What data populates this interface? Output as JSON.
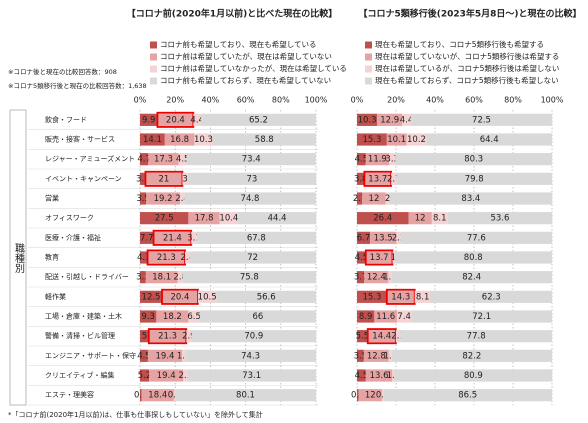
{
  "chart_data": [
    {
      "type": "stacked-bar-horizontal",
      "title": "【コロナ前(2020年1月以前)と比べた現在の比較】",
      "notes": [
        "※コロナ後と現在の比較回答数：908",
        "※コロナ5類移行後と現在の比較回答数：1,638"
      ],
      "y_label": "職種別",
      "footnote": "*「コロナ前(2020年1月以前)は、仕事も仕事探しもしていない」を除外して集計",
      "categories": [
        "飲食・フード",
        "販売・接客・サービス",
        "レジャー・アミューズメント",
        "イベント・キャンペーン",
        "営業",
        "オフィスワーク",
        "医療・介護・福祉",
        "教育",
        "配送・引越し・ドライバー",
        "軽作業",
        "工場・倉庫・建築・土木",
        "警備・清掃・ビル管理",
        "エンジニア・サポート・保守",
        "クリエイティブ・編集",
        "エステ・理美容"
      ],
      "xlim": [
        0,
        100
      ],
      "xticks": [
        {
          "value": 0,
          "label": "0%"
        },
        {
          "value": 20,
          "label": "20%"
        },
        {
          "value": 40,
          "label": "40%"
        },
        {
          "value": 60,
          "label": "60%"
        },
        {
          "value": 80,
          "label": "80%"
        },
        {
          "value": 100,
          "label": "100%"
        }
      ],
      "grid": true,
      "series": [
        {
          "name": "コロナ前も希望しており、現在も希望している",
          "color": "#c0504d",
          "values": [
            9.9,
            14.1,
            4.7,
            3.1,
            3.5,
            27.5,
            7.7,
            4.3,
            3.3,
            12.5,
            9.3,
            5.0,
            4.5,
            5.2,
            0.9
          ]
        },
        {
          "name": "コロナ前は希望していたが、現在は希望していない",
          "color": "#e6a3a3",
          "values": [
            20.4,
            16.8,
            17.3,
            21.0,
            19.2,
            17.8,
            21.4,
            21.3,
            18.1,
            20.4,
            18.2,
            21.3,
            19.4,
            19.4,
            18.4
          ],
          "highlight": [
            0,
            3,
            6,
            7,
            9,
            11
          ]
        },
        {
          "name": "コロナ前は希望していなかったが、現在は希望している",
          "color": "#f3d3d3",
          "values": [
            4.4,
            10.3,
            4.5,
            3.0,
            2.4,
            10.4,
            3.1,
            2.4,
            2.8,
            10.5,
            6.5,
            2.9,
            1.8,
            2.3,
            0.6
          ]
        },
        {
          "name": "コロナ前も希望しておらず、現在も希望していない",
          "color": "#d9d9d9",
          "values": [
            65.2,
            58.8,
            73.4,
            73.0,
            74.8,
            44.4,
            67.8,
            72.0,
            75.8,
            56.6,
            66.0,
            70.9,
            74.3,
            73.1,
            80.1
          ]
        }
      ]
    },
    {
      "type": "stacked-bar-horizontal",
      "title": "【コロナ5類移行後(2023年5月8日〜)と現在の比較】",
      "xlim": [
        0,
        100
      ],
      "xticks": [
        {
          "value": 0,
          "label": "0%"
        },
        {
          "value": 20,
          "label": "20%"
        },
        {
          "value": 40,
          "label": "40%"
        },
        {
          "value": 60,
          "label": "60%"
        },
        {
          "value": 80,
          "label": "80%"
        },
        {
          "value": 100,
          "label": "100%"
        }
      ],
      "grid": true,
      "series": [
        {
          "name": "現在も希望しており、コロナ5類移行後も希望する",
          "color": "#c0504d",
          "values": [
            10.3,
            15.3,
            4.5,
            3.8,
            2.7,
            26.4,
            6.7,
            4.5,
            3.7,
            15.3,
            8.9,
            5.5,
            3.5,
            4.5,
            0.8
          ]
        },
        {
          "name": "現在は希望していないが、コロナ5類移行後は希望する",
          "color": "#e6a3a3",
          "values": [
            12.9,
            10.1,
            11.9,
            13.7,
            12.0,
            12.0,
            13.5,
            13.7,
            12.4,
            14.3,
            11.6,
            14.4,
            12.8,
            13.6,
            12.0
          ],
          "highlight": [
            3,
            7,
            9,
            11
          ]
        },
        {
          "name": "現在は希望しているが、コロナ5類移行後は希望しない",
          "color": "#f3d3d3",
          "values": [
            4.4,
            10.2,
            3.3,
            2.7,
            2.0,
            8.1,
            2.2,
            1.0,
            1.5,
            8.1,
            7.4,
            2.3,
            1.5,
            1.1,
            0.7
          ]
        },
        {
          "name": "現在も希望しておらず、コロナ5類移行後も希望しない",
          "color": "#d9d9d9",
          "values": [
            72.5,
            64.4,
            80.3,
            79.8,
            83.4,
            53.6,
            77.6,
            80.8,
            82.4,
            62.3,
            72.1,
            77.8,
            82.2,
            80.9,
            86.5
          ]
        }
      ]
    }
  ]
}
